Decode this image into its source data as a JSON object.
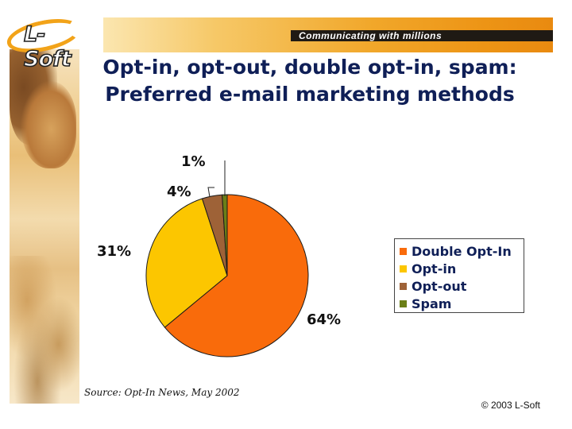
{
  "header": {
    "logo_text": "L-Soft",
    "tagline": "Communicating with millions"
  },
  "title": "Opt-in, opt-out, double opt-in, spam: Preferred e-mail marketing methods",
  "chart_data": {
    "type": "pie",
    "title": "Opt-in, opt-out, double opt-in, spam: Preferred e-mail marketing methods",
    "labels": [
      "Double Opt-In",
      "Opt-in",
      "Opt-out",
      "Spam"
    ],
    "values": [
      64,
      31,
      4,
      1
    ],
    "value_labels": [
      "64%",
      "31%",
      "4%",
      "1%"
    ],
    "colors": [
      "#f96b0b",
      "#fcc600",
      "#9e6237",
      "#6b7f17"
    ],
    "start": "12 o'clock",
    "direction": "clockwise",
    "legend_position": "right"
  },
  "footer": {
    "source": "Source: Opt-In News, May 2002",
    "copyright": "© 2003 L-Soft"
  }
}
